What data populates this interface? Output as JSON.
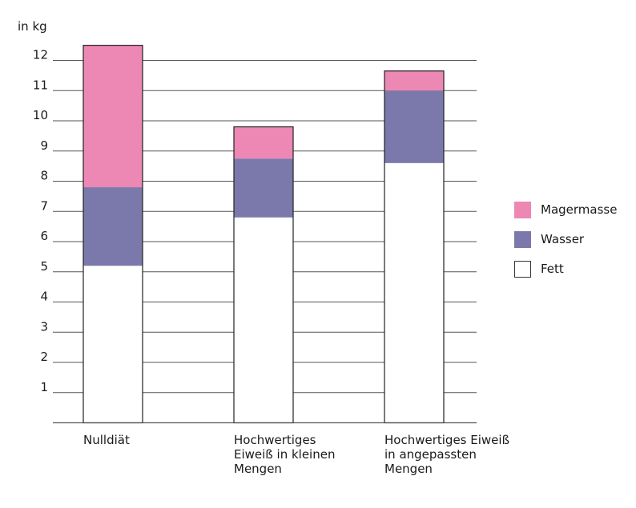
{
  "chart_data": {
    "type": "bar",
    "stacked": true,
    "unit_label": "in kg",
    "categories": [
      "Nulldiät",
      "Hochwertiges\nEiweiß in kleinen\nMengen",
      "Hochwertiges Eiweiß\nin angepassten\nMengen"
    ],
    "series": [
      {
        "name": "Fett",
        "color": "#ffffff",
        "values": [
          5.2,
          6.8,
          8.6
        ]
      },
      {
        "name": "Wasser",
        "color": "#7b79ab",
        "values": [
          2.6,
          1.95,
          2.4
        ]
      },
      {
        "name": "Magermasse",
        "color": "#ec88b3",
        "values": [
          4.7,
          1.05,
          0.65
        ]
      }
    ],
    "yticks": [
      "1",
      "2",
      "3",
      "4",
      "5",
      "6",
      "7",
      "8",
      "9",
      "10",
      "11",
      "12"
    ],
    "ylim": [
      0,
      12.5
    ],
    "grid": true,
    "legend_position": "right"
  }
}
